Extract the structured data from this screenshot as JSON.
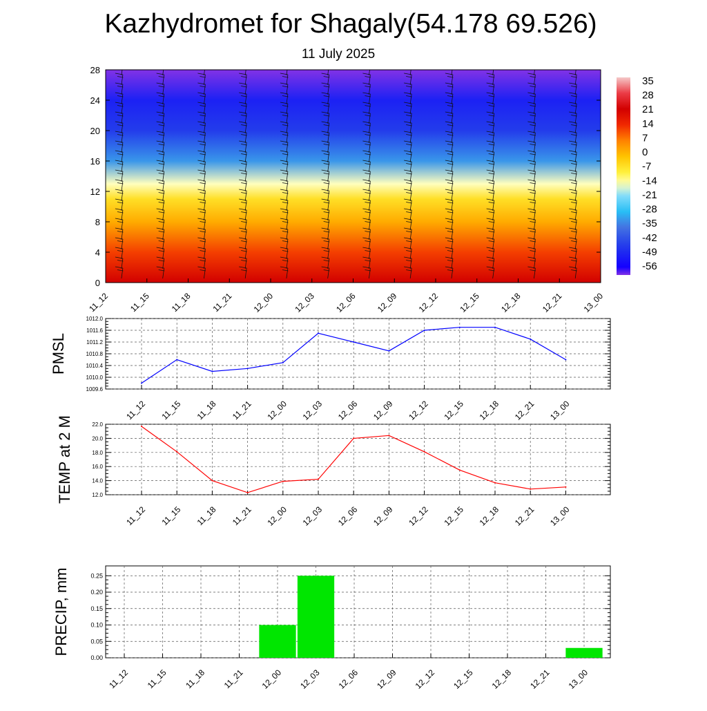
{
  "page": {
    "title": "Kazhydromet for Shagaly(54.178 69.526)",
    "subtitle": "11 July 2025"
  },
  "colors": {
    "pmsl_line": "#0000ff",
    "temp_line": "#ff0000",
    "precip_bar": "#00e600",
    "grid": "#555555"
  },
  "chart_data": [
    {
      "id": "profile",
      "type": "heatmap",
      "title": "",
      "xlabel": "",
      "ylabel": "",
      "categories": [
        "11_12",
        "11_15",
        "11_18",
        "11_21",
        "12_00",
        "12_03",
        "12_06",
        "12_09",
        "12_12",
        "12_15",
        "12_18",
        "12_21",
        "13_00"
      ],
      "y_ticks": [
        0,
        4,
        8,
        12,
        16,
        20,
        24,
        28
      ],
      "ylim": [
        0,
        28
      ],
      "colorbar_labels": [
        35,
        28,
        21,
        14,
        7,
        0,
        -7,
        -14,
        -21,
        -28,
        -35,
        -42,
        -49,
        -56
      ],
      "colorbar_range": [
        -60,
        40
      ],
      "temperature_profile": [
        {
          "level": 0,
          "value": 24
        },
        {
          "level": 4,
          "value": 14
        },
        {
          "level": 8,
          "value": 3
        },
        {
          "level": 11,
          "value": -5
        },
        {
          "level": 13,
          "value": -14
        },
        {
          "level": 16,
          "value": -32
        },
        {
          "level": 20,
          "value": -45
        },
        {
          "level": 24,
          "value": -50
        },
        {
          "level": 28,
          "value": -60
        }
      ],
      "wind_barbs": "present"
    },
    {
      "id": "pmsl",
      "type": "line",
      "ylabel": "PMSL",
      "categories": [
        "11_12",
        "11_15",
        "11_18",
        "11_21",
        "12_00",
        "12_03",
        "12_06",
        "12_09",
        "12_12",
        "12_15",
        "12_18",
        "12_21",
        "13_00"
      ],
      "series": [
        {
          "values": [
            1009.8,
            1010.6,
            1010.2,
            1010.3,
            1010.5,
            1011.5,
            1011.2,
            1010.9,
            1011.6,
            1011.7,
            1011.7,
            1011.3,
            1010.6
          ]
        }
      ],
      "y_ticks": [
        "1009.6",
        "1010.0",
        "1010.4",
        "1010.8",
        "1011.2",
        "1011.6",
        "1012.0"
      ],
      "ylim": [
        1009.6,
        1012.0
      ],
      "grid": true
    },
    {
      "id": "temp",
      "type": "line",
      "ylabel": "TEMP at 2 M",
      "categories": [
        "11_12",
        "11_15",
        "11_18",
        "11_21",
        "12_00",
        "12_03",
        "12_06",
        "12_09",
        "12_12",
        "12_15",
        "12_18",
        "12_21",
        "13_00"
      ],
      "series": [
        {
          "values": [
            21.7,
            18.1,
            14.0,
            12.3,
            13.9,
            14.2,
            20.0,
            20.4,
            18.1,
            15.5,
            13.7,
            12.8,
            13.1
          ]
        }
      ],
      "y_ticks": [
        "12.0",
        "14.0",
        "16.0",
        "18.0",
        "20.0",
        "22.0"
      ],
      "ylim": [
        12.0,
        22.0
      ],
      "grid": true
    },
    {
      "id": "precip",
      "type": "bar",
      "ylabel": "PRECIP, mm",
      "categories": [
        "11_12",
        "11_15",
        "11_18",
        "11_21",
        "12_00",
        "12_03",
        "12_06",
        "12_09",
        "12_12",
        "12_15",
        "12_18",
        "12_21",
        "13_00"
      ],
      "values": [
        0,
        0,
        0,
        0,
        0.1,
        0.25,
        0,
        0,
        0,
        0,
        0,
        0,
        0.03
      ],
      "y_ticks": [
        "0.00",
        "0.05",
        "0.10",
        "0.15",
        "0.20",
        "0.25"
      ],
      "ylim": [
        0,
        0.28
      ],
      "grid": true
    }
  ]
}
